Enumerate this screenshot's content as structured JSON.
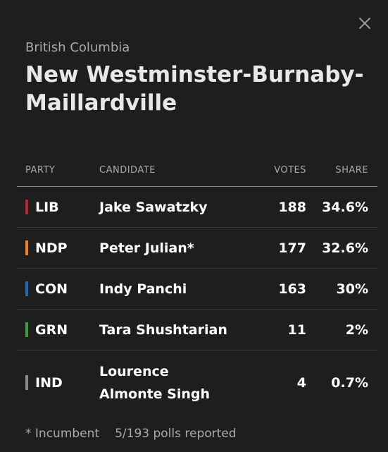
{
  "close_icon": "close-icon",
  "header": {
    "province": "British Columbia",
    "riding": "New Westminster-Burnaby-Maillardville"
  },
  "table": {
    "headers": {
      "party": "PARTY",
      "candidate": "CANDIDATE",
      "votes": "VOTES",
      "share": "SHARE"
    },
    "rows": [
      {
        "party": "LIB",
        "color": "#b5262d",
        "candidate": "Jake Sawatzky",
        "votes": "188",
        "share": "34.6%"
      },
      {
        "party": "NDP",
        "color": "#f07f22",
        "candidate": "Peter Julian*",
        "votes": "177",
        "share": "32.6%"
      },
      {
        "party": "CON",
        "color": "#2467b1",
        "candidate": "Indy Panchi",
        "votes": "163",
        "share": "30%"
      },
      {
        "party": "GRN",
        "color": "#3d9b3a",
        "candidate": "Tara Shushtarian",
        "votes": "11",
        "share": "2%"
      },
      {
        "party": "IND",
        "color": "#8a8a8a",
        "candidate": "Lourence Almonte Singh",
        "votes": "4",
        "share": "0.7%"
      }
    ]
  },
  "footer": {
    "incumbent_note": "* Incumbent",
    "polls_reported": "5/193 polls reported"
  }
}
